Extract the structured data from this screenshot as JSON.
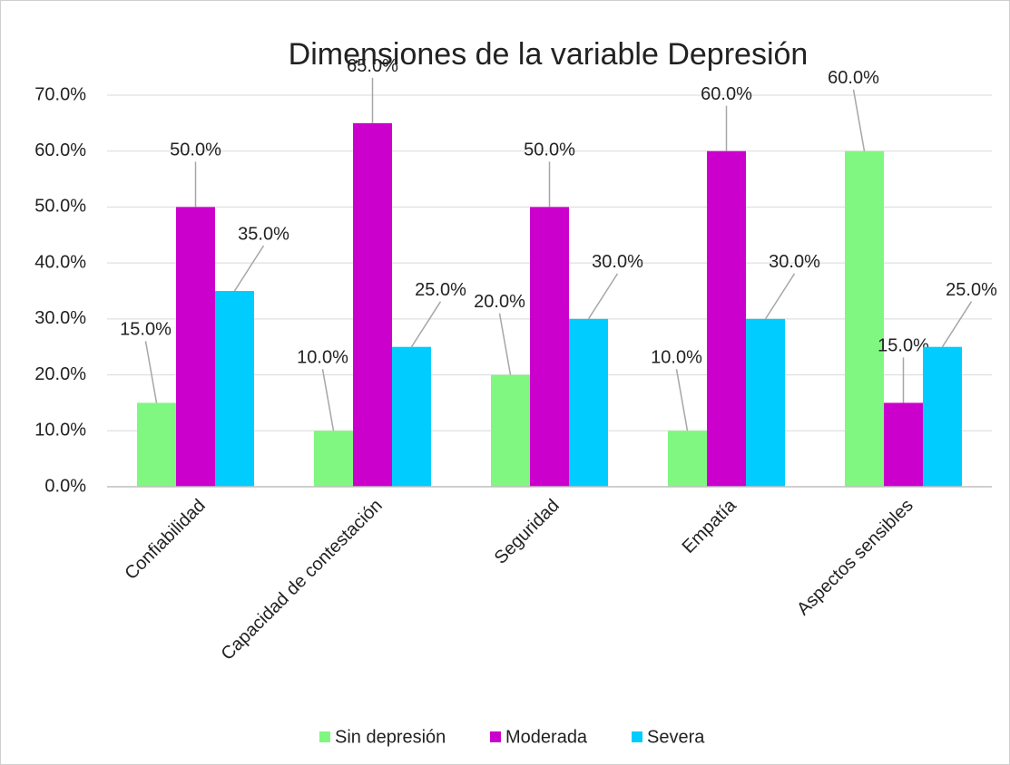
{
  "chart_data": {
    "type": "bar",
    "title": "Dimensiones de la variable Depresión",
    "categories": [
      "Confiabilidad",
      "Capacidad de contestación",
      "Seguridad",
      "Empatía",
      "Aspectos sensibles"
    ],
    "series": [
      {
        "name": "Sin depresión",
        "color": "#80f780",
        "values": [
          15,
          10,
          20,
          10,
          60
        ],
        "value_labels": [
          "15.0%",
          "10.0%",
          "20.0%",
          "10.0%",
          "60.0%"
        ]
      },
      {
        "name": "Moderada",
        "color": "#cc00cc",
        "values": [
          50,
          65,
          50,
          60,
          15
        ],
        "value_labels": [
          "50.0%",
          "65.0%",
          "50.0%",
          "60.0%",
          "15.0%"
        ]
      },
      {
        "name": "Severa",
        "color": "#00ccff",
        "values": [
          35,
          25,
          30,
          30,
          25
        ],
        "value_labels": [
          "35.0%",
          "25.0%",
          "30.0%",
          "30.0%",
          "25.0%"
        ]
      }
    ],
    "ylim": [
      0,
      70
    ],
    "yticks": [
      {
        "value": 0,
        "label": "0.0%"
      },
      {
        "value": 10,
        "label": "10.0%"
      },
      {
        "value": 20,
        "label": "20.0%"
      },
      {
        "value": 30,
        "label": "30.0%"
      },
      {
        "value": 40,
        "label": "40.0%"
      },
      {
        "value": 50,
        "label": "50.0%"
      },
      {
        "value": 60,
        "label": "60.0%"
      },
      {
        "value": 70,
        "label": "70.0%"
      }
    ],
    "grid": true,
    "legend": "bottom"
  }
}
